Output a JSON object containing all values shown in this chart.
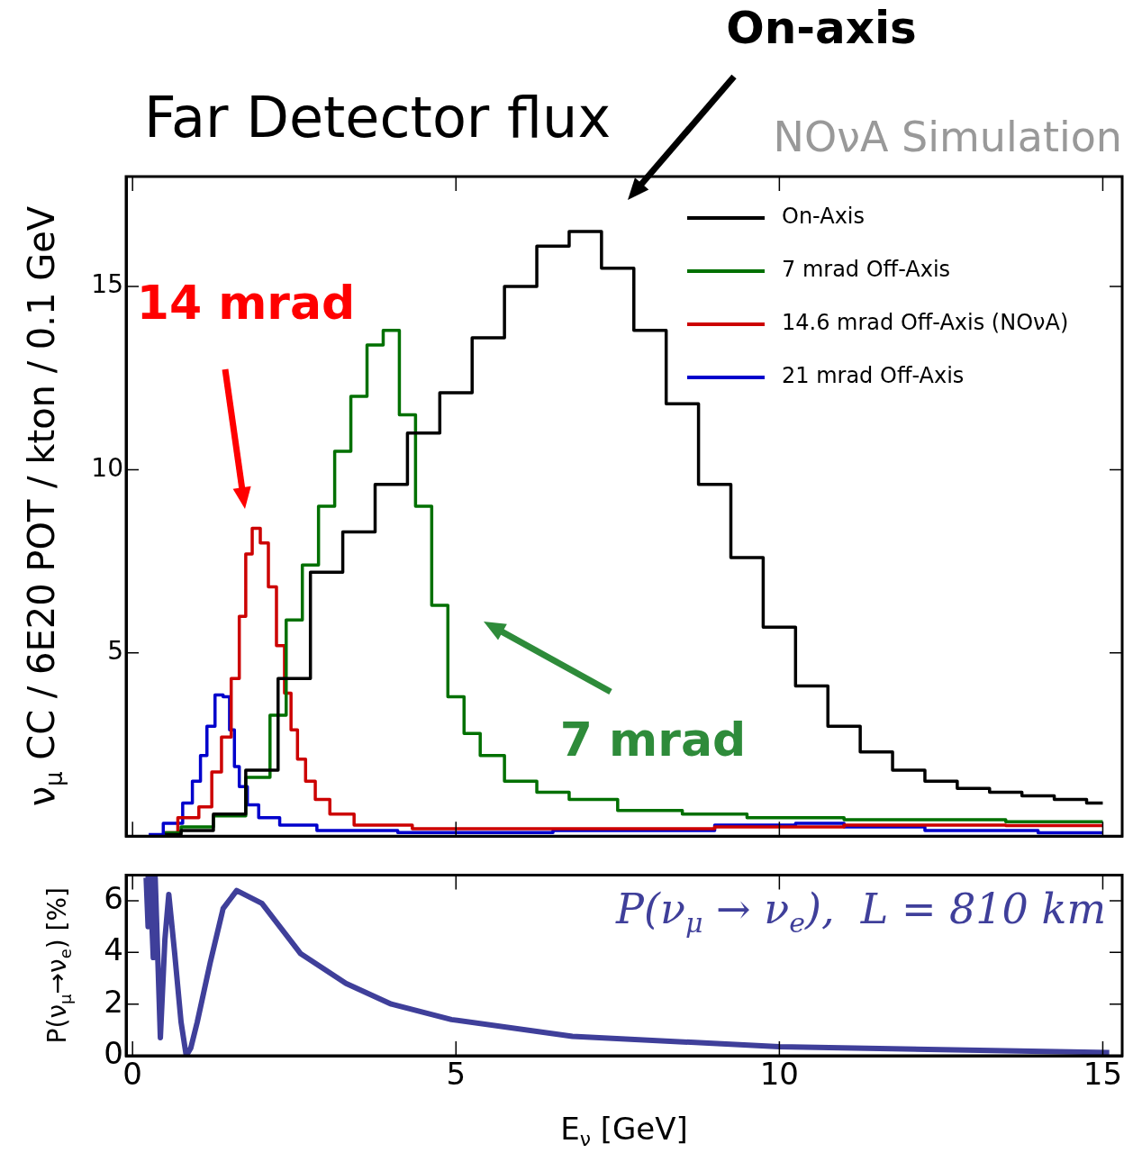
{
  "chart_data": [
    {
      "type": "step",
      "title": "Far Detector flux",
      "ylabel": "ν$_{μ}$ CC / 6E20 POT / kton / 0.1 GeV",
      "xlim": [
        -0.1,
        15.3
      ],
      "xticks": [
        0,
        5,
        10,
        15
      ],
      "ylim": [
        0,
        18
      ],
      "yticks": [
        5,
        10,
        15
      ],
      "tick_labels": "y",
      "grid": false,
      "legend": "top right",
      "marker": "none",
      "series": [
        {
          "name": "On-Axis",
          "color": "#000000",
          "x": [
            0.5,
            1.0,
            1.5,
            2.0,
            2.5,
            3.0,
            3.5,
            4.0,
            4.5,
            5.0,
            5.5,
            6.0,
            6.5,
            7.0,
            7.5,
            8.0,
            8.5,
            9.0,
            9.5,
            10.0,
            10.5,
            11.0,
            11.5,
            12.0,
            12.5,
            13.0,
            13.5,
            14.0,
            14.5,
            15.0
          ],
          "values": [
            0.04,
            0.15,
            0.6,
            1.8,
            4.3,
            7.2,
            8.3,
            9.6,
            11.0,
            12.1,
            13.6,
            15.0,
            16.1,
            16.5,
            15.5,
            13.8,
            11.8,
            9.6,
            7.6,
            5.7,
            4.1,
            3.0,
            2.3,
            1.8,
            1.5,
            1.3,
            1.2,
            1.1,
            1.0,
            0.9
          ]
        },
        {
          "name": "7 mrad Off-Axis",
          "color": "#007000",
          "x": [
            0.5,
            1.0,
            1.5,
            2.0,
            2.25,
            2.5,
            2.75,
            3.0,
            3.25,
            3.5,
            3.75,
            4.0,
            4.25,
            4.5,
            4.75,
            5.0,
            5.25,
            5.5,
            6.0,
            6.5,
            7.0,
            8.0,
            9.0,
            10.0,
            12.0,
            15.0
          ],
          "values": [
            0.09,
            0.25,
            0.55,
            1.6,
            3.3,
            5.9,
            7.4,
            9.0,
            10.5,
            12.0,
            13.4,
            13.8,
            11.5,
            9.0,
            6.3,
            3.8,
            2.8,
            2.2,
            1.5,
            1.2,
            1.0,
            0.7,
            0.6,
            0.5,
            0.45,
            0.39
          ]
        },
        {
          "name": "14.6 mrad Off-Axis (NOνA)",
          "color": "#cc0000",
          "x": [
            0.5,
            0.9,
            1.15,
            1.3,
            1.45,
            1.6,
            1.7,
            1.8,
            1.9,
            2.05,
            2.15,
            2.3,
            2.4,
            2.5,
            2.6,
            2.75,
            2.9,
            3.2,
            3.65,
            5.0,
            8.0,
            10.0,
            12.0,
            15.0
          ],
          "values": [
            0.09,
            0.5,
            0.8,
            1.75,
            2.7,
            4.3,
            6.0,
            7.7,
            8.4,
            8.0,
            6.8,
            5.2,
            3.9,
            2.9,
            2.1,
            1.5,
            1.0,
            0.6,
            0.3,
            0.2,
            0.2,
            0.25,
            0.3,
            0.29
          ]
        },
        {
          "name": "21 mrad Off-Axis",
          "color": "#0000cc",
          "x": [
            0.25,
            0.7,
            0.85,
            1.0,
            1.1,
            1.2,
            1.35,
            1.45,
            1.55,
            1.6,
            1.7,
            1.85,
            2.05,
            2.5,
            3.2,
            5.0,
            8.0,
            10.0,
            10.5,
            11.5,
            13.0,
            15.0
          ],
          "values": [
            0.04,
            0.35,
            0.9,
            1.5,
            2.2,
            3.0,
            3.85,
            3.8,
            2.9,
            1.9,
            1.35,
            0.85,
            0.5,
            0.3,
            0.15,
            0.1,
            0.15,
            0.3,
            0.35,
            0.25,
            0.15,
            0.09
          ]
        }
      ],
      "annotations": [
        "On-axis",
        "14 mrad",
        "7 mrad",
        "NOνA Simulation"
      ]
    },
    {
      "type": "line",
      "xlabel": "E$_{ν}$ [GeV]",
      "ylabel": "P(ν$_{μ}$→ν$_{e}$) [%]",
      "xlim": [
        -0.1,
        15.3
      ],
      "xticks": [
        0,
        5,
        10,
        15
      ],
      "ylim": [
        0,
        7
      ],
      "yticks": [
        0,
        2,
        4,
        6
      ],
      "grid": false,
      "legend": false,
      "marker": "none",
      "series": [
        {
          "color": "#3f3f9a",
          "x": [
            0.2,
            0.21,
            0.24,
            0.27,
            0.32,
            0.35,
            0.43,
            0.5,
            0.56,
            0.65,
            0.75,
            0.83,
            0.9,
            1.0,
            1.2,
            1.4,
            1.61,
            2.0,
            2.6,
            3.3,
            4.0,
            4.93,
            6.8,
            10.0,
            15.1
          ],
          "values": [
            6.9,
            6.9,
            5.0,
            6.9,
            3.8,
            6.9,
            0.7,
            4.5,
            6.25,
            4.0,
            1.3,
            0.0,
            0.3,
            1.3,
            3.6,
            5.7,
            6.4,
            5.9,
            3.95,
            2.8,
            2.0,
            1.4,
            0.75,
            0.35,
            0.12
          ]
        }
      ],
      "annotations": [
        "P(ν$_{μ}$ → ν$_{e}$),  L = 810 km"
      ]
    }
  ]
}
